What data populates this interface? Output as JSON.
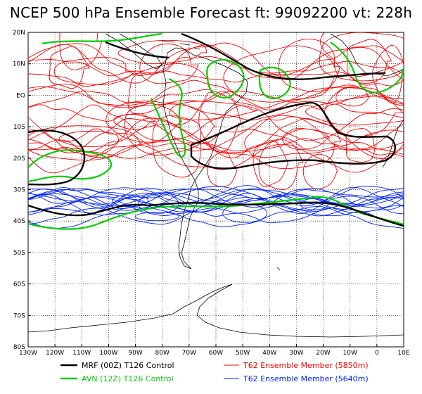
{
  "title": "NCEP 500 hPa Ensemble Forecast  ft: 99092200 vt: 228h",
  "colors": {
    "mrf": "#000000",
    "avn": "#00cc00",
    "t62_5850": "#ee0000",
    "t62_5640": "#0022ee",
    "coast": "#000000",
    "grid": "#000000"
  },
  "lat_labels": [
    "20N",
    "10N",
    "EO",
    "10S",
    "20S",
    "30S",
    "40S",
    "50S",
    "60S",
    "70S",
    "80S"
  ],
  "lon_labels": [
    "130W",
    "120W",
    "110W",
    "100W",
    "90W",
    "80W",
    "70W",
    "60W",
    "50W",
    "40W",
    "30W",
    "20W",
    "10W",
    "0",
    "10E"
  ],
  "legend": [
    {
      "label": "MRF (00Z) T126 Control",
      "color": "#000000"
    },
    {
      "label": "T62 Ensemble Member (5850m)",
      "color": "#ee0000"
    },
    {
      "label": "AVN (12Z) T126 Control",
      "color": "#00cc00"
    },
    {
      "label": "T62 Ensemble Member (5640m)",
      "color": "#0022ee"
    }
  ]
}
